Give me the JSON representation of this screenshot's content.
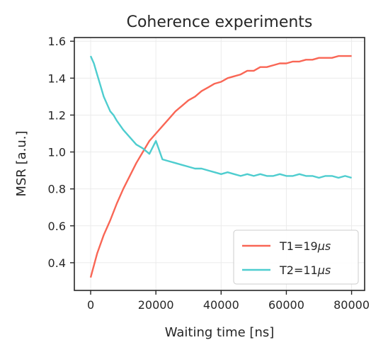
{
  "chart_data": {
    "type": "line",
    "title": "Coherence experiments",
    "xlabel": "Waiting time [ns]",
    "ylabel": "MSR [a.u.]",
    "xlim": [
      -5000,
      84000
    ],
    "ylim": [
      0.25,
      1.62
    ],
    "xticks": [
      0,
      20000,
      40000,
      60000,
      80000
    ],
    "yticks": [
      0.4,
      0.6,
      0.8,
      1.0,
      1.2,
      1.4,
      1.6
    ],
    "xtick_labels": [
      "0",
      "20000",
      "40000",
      "60000",
      "80000"
    ],
    "ytick_labels": [
      "0.4",
      "0.6",
      "0.8",
      "1.0",
      "1.2",
      "1.4",
      "1.6"
    ],
    "grid": true,
    "legend_position": "lower-right",
    "series": [
      {
        "name": "T1=19μs",
        "legend_label": "T1=19",
        "legend_unit": "μs",
        "color": "#f96655",
        "x": [
          0,
          2000,
          4000,
          6000,
          8000,
          10000,
          12000,
          14000,
          16000,
          18000,
          20000,
          22000,
          24000,
          26000,
          28000,
          30000,
          32000,
          34000,
          36000,
          38000,
          40000,
          42000,
          44000,
          46000,
          48000,
          50000,
          52000,
          54000,
          56000,
          58000,
          60000,
          62000,
          64000,
          66000,
          68000,
          70000,
          72000,
          74000,
          76000,
          78000,
          80000
        ],
        "y": [
          0.32,
          0.45,
          0.55,
          0.63,
          0.72,
          0.8,
          0.87,
          0.94,
          1.0,
          1.06,
          1.1,
          1.14,
          1.18,
          1.22,
          1.25,
          1.28,
          1.3,
          1.33,
          1.35,
          1.37,
          1.38,
          1.4,
          1.41,
          1.42,
          1.44,
          1.44,
          1.46,
          1.46,
          1.47,
          1.48,
          1.48,
          1.49,
          1.49,
          1.5,
          1.5,
          1.51,
          1.51,
          1.51,
          1.52,
          1.52,
          1.52
        ]
      },
      {
        "name": "T2=11μs",
        "legend_label": "T2=11",
        "legend_unit": "μs",
        "color": "#4ecdcf",
        "x": [
          0,
          1000,
          2000,
          3000,
          4000,
          5000,
          6000,
          7000,
          8000,
          10000,
          12000,
          14000,
          16000,
          18000,
          20000,
          22000,
          24000,
          26000,
          28000,
          30000,
          32000,
          34000,
          36000,
          38000,
          40000,
          42000,
          44000,
          46000,
          48000,
          50000,
          52000,
          54000,
          56000,
          58000,
          60000,
          62000,
          64000,
          66000,
          68000,
          70000,
          72000,
          74000,
          76000,
          78000,
          80000
        ],
        "y": [
          1.52,
          1.48,
          1.42,
          1.36,
          1.3,
          1.26,
          1.22,
          1.2,
          1.17,
          1.12,
          1.08,
          1.04,
          1.02,
          0.99,
          1.06,
          0.96,
          0.95,
          0.94,
          0.93,
          0.92,
          0.91,
          0.91,
          0.9,
          0.89,
          0.88,
          0.89,
          0.88,
          0.87,
          0.88,
          0.87,
          0.88,
          0.87,
          0.87,
          0.88,
          0.87,
          0.87,
          0.88,
          0.87,
          0.87,
          0.86,
          0.87,
          0.87,
          0.86,
          0.87,
          0.86
        ]
      }
    ]
  }
}
